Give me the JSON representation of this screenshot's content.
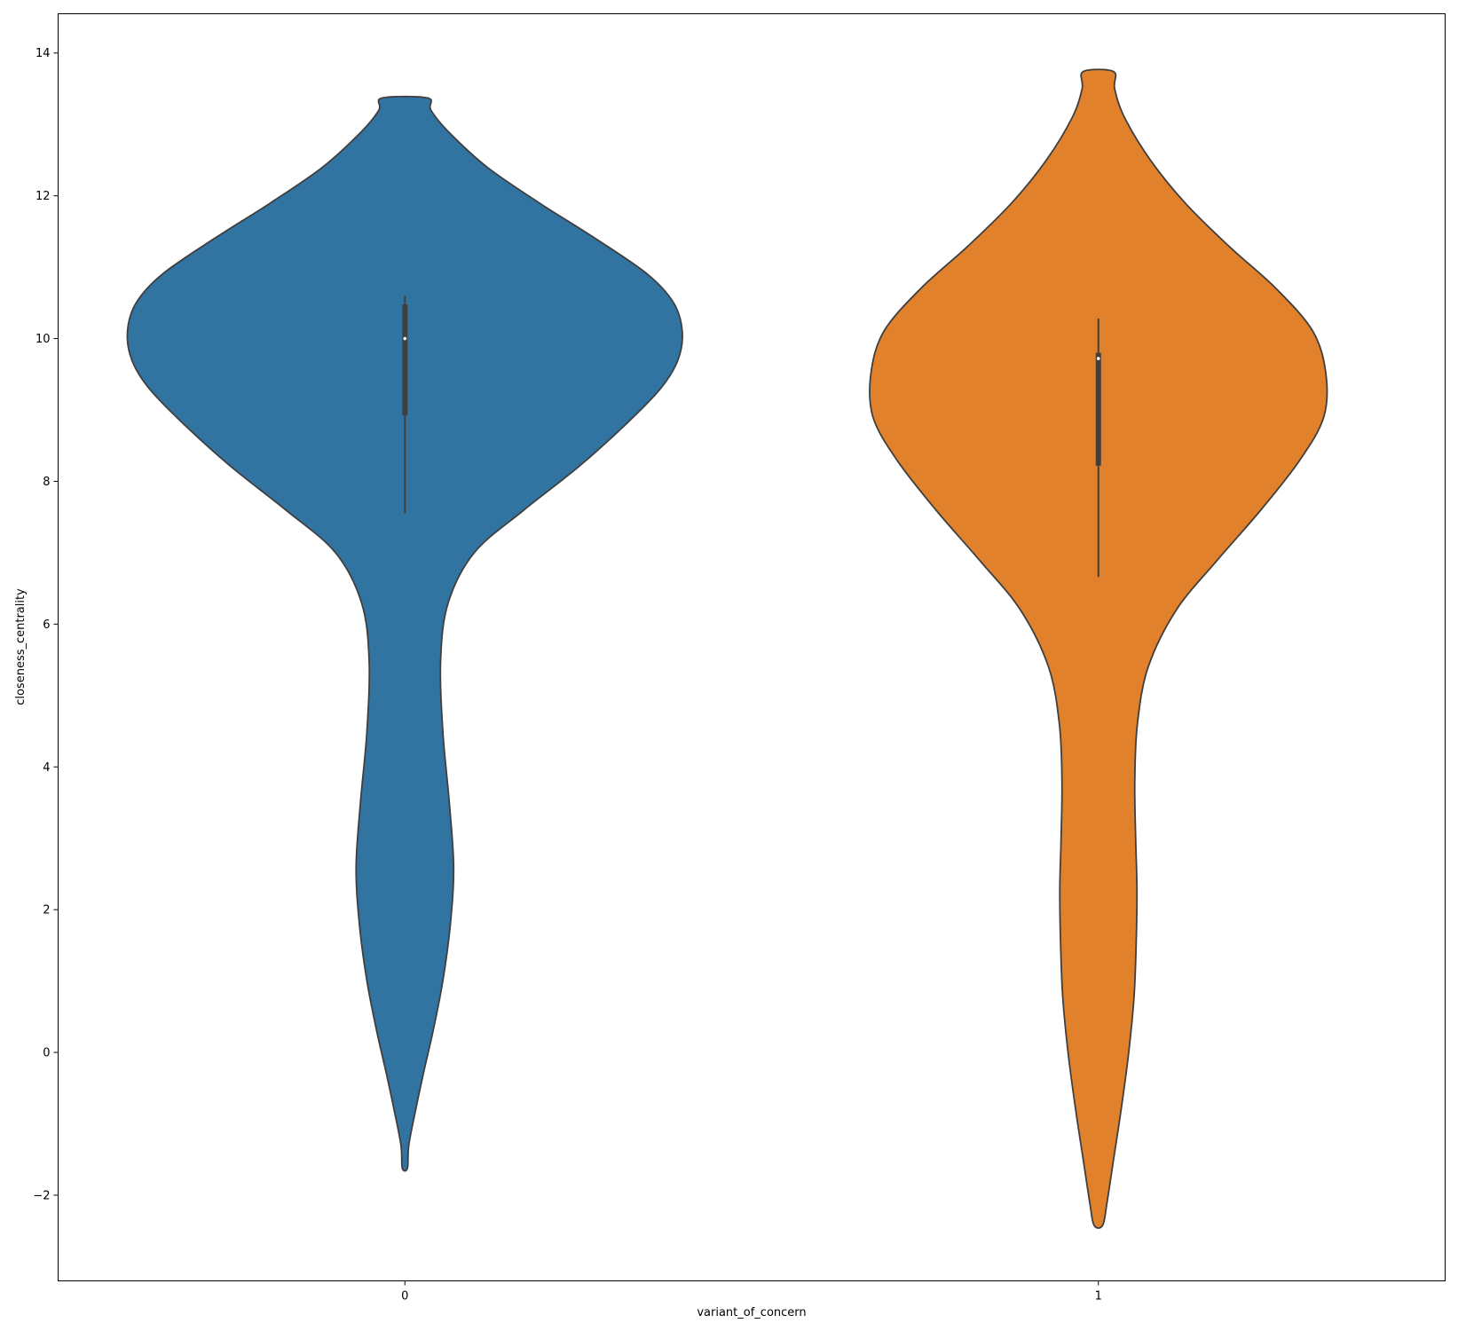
{
  "chart_data": {
    "type": "violin",
    "xlabel": "variant_of_concern",
    "ylabel": "closeness_centrality",
    "categories": [
      "0",
      "1"
    ],
    "ylim": [
      -3.2,
      14.55
    ],
    "yticks": [
      -2,
      0,
      2,
      4,
      6,
      8,
      10,
      12,
      14
    ],
    "ytick_labels": [
      "−2",
      "0",
      "2",
      "4",
      "6",
      "8",
      "10",
      "12",
      "14"
    ],
    "grid": false,
    "legend": "none",
    "series": [
      {
        "category": "0",
        "color": "#3274a1",
        "range": [
          -1.62,
          13.37
        ],
        "box": {
          "q1": 8.92,
          "median": 10.0,
          "q3": 10.48,
          "whisker_low": 7.55,
          "whisker_high": 10.6
        },
        "density_profile": [
          [
            -1.62,
            0.012
          ],
          [
            -1.3,
            0.018
          ],
          [
            -0.8,
            0.05
          ],
          [
            -0.3,
            0.085
          ],
          [
            0.3,
            0.13
          ],
          [
            1.0,
            0.175
          ],
          [
            1.8,
            0.21
          ],
          [
            2.6,
            0.225
          ],
          [
            3.5,
            0.205
          ],
          [
            4.5,
            0.175
          ],
          [
            5.5,
            0.165
          ],
          [
            6.3,
            0.2
          ],
          [
            7.0,
            0.32
          ],
          [
            7.6,
            0.55
          ],
          [
            8.2,
            0.8
          ],
          [
            8.8,
            1.02
          ],
          [
            9.3,
            1.18
          ],
          [
            9.7,
            1.26
          ],
          [
            10.1,
            1.28
          ],
          [
            10.5,
            1.24
          ],
          [
            10.9,
            1.12
          ],
          [
            11.4,
            0.88
          ],
          [
            11.9,
            0.62
          ],
          [
            12.4,
            0.38
          ],
          [
            12.9,
            0.2
          ],
          [
            13.2,
            0.12
          ],
          [
            13.37,
            0.105
          ]
        ]
      },
      {
        "category": "1",
        "color": "#e1812c",
        "range": [
          -2.42,
          13.74
        ],
        "box": {
          "q1": 8.22,
          "median": 9.72,
          "q3": 9.8,
          "whisker_low": 6.66,
          "whisker_high": 10.28
        },
        "density_profile": [
          [
            -2.42,
            0.02
          ],
          [
            -2.1,
            0.04
          ],
          [
            -1.5,
            0.07
          ],
          [
            -0.8,
            0.105
          ],
          [
            0.0,
            0.14
          ],
          [
            0.8,
            0.165
          ],
          [
            1.6,
            0.175
          ],
          [
            2.3,
            0.178
          ],
          [
            3.0,
            0.172
          ],
          [
            3.8,
            0.168
          ],
          [
            4.6,
            0.18
          ],
          [
            5.4,
            0.23
          ],
          [
            6.2,
            0.36
          ],
          [
            6.9,
            0.55
          ],
          [
            7.6,
            0.75
          ],
          [
            8.3,
            0.93
          ],
          [
            8.9,
            1.04
          ],
          [
            9.5,
            1.05
          ],
          [
            10.1,
            0.99
          ],
          [
            10.7,
            0.82
          ],
          [
            11.3,
            0.6
          ],
          [
            11.9,
            0.4
          ],
          [
            12.5,
            0.24
          ],
          [
            13.1,
            0.12
          ],
          [
            13.5,
            0.075
          ],
          [
            13.74,
            0.07
          ]
        ]
      }
    ]
  }
}
